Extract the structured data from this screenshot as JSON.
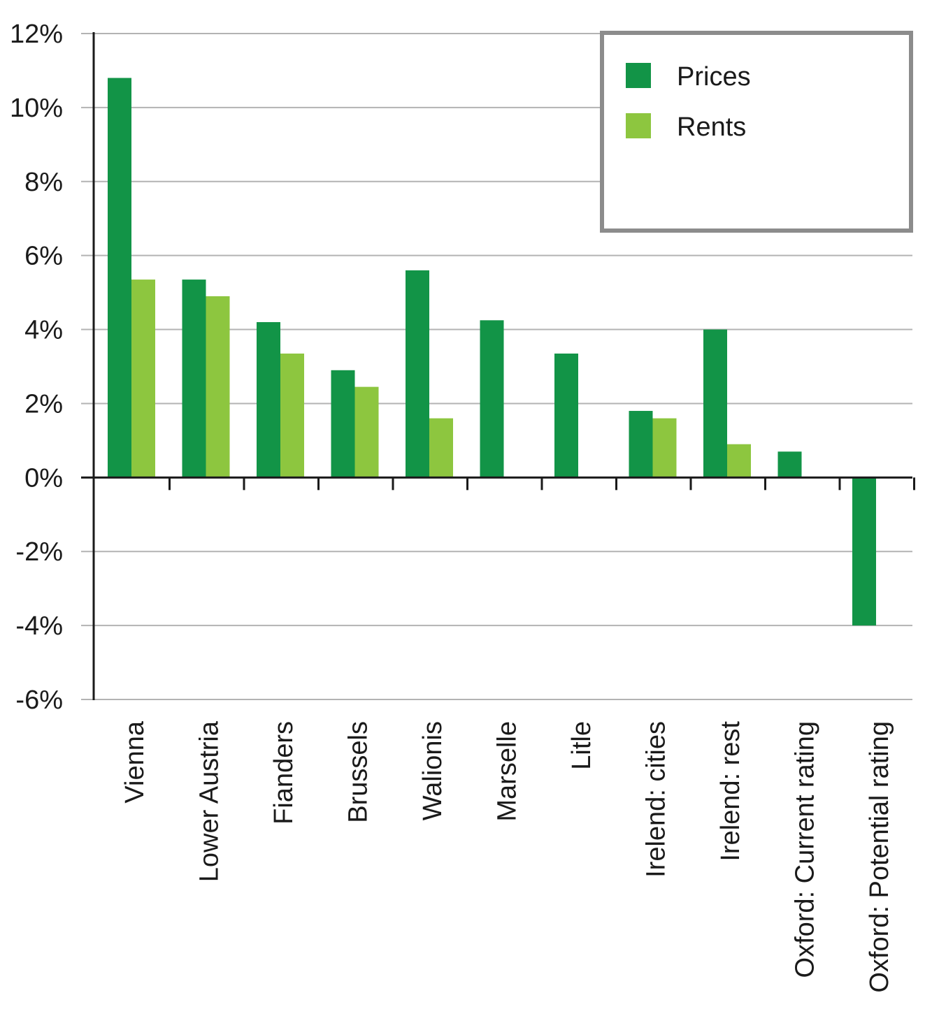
{
  "chart_data": {
    "type": "bar",
    "title": "",
    "xlabel": "",
    "ylabel": "",
    "ylim": [
      -6,
      12
    ],
    "y_ticks": [
      12,
      10,
      8,
      6,
      4,
      2,
      0,
      -2,
      -4,
      -6
    ],
    "y_tick_labels": [
      "12%",
      "10%",
      "8%",
      "6%",
      "4%",
      "2%",
      "0%",
      "-2%",
      "-4%",
      "-6%"
    ],
    "grid": true,
    "legend_position": "top-right",
    "categories": [
      "Vienna",
      "Lower Austria",
      "Fianders",
      "Brussels",
      "Walionis",
      "Marselle",
      "Litle",
      "Irelend: cities",
      "Irelend: rest",
      "Oxford: Current rating",
      "Oxford: Potential rating"
    ],
    "series": [
      {
        "name": "Prices",
        "color": "#129447",
        "values": [
          10.8,
          5.35,
          4.2,
          2.9,
          5.6,
          4.25,
          3.35,
          1.8,
          4.0,
          0.7,
          -4.0
        ]
      },
      {
        "name": "Rents",
        "color": "#8dc63f",
        "values": [
          5.35,
          4.9,
          3.35,
          2.45,
          1.6,
          null,
          null,
          1.6,
          0.9,
          null,
          null
        ]
      }
    ]
  }
}
